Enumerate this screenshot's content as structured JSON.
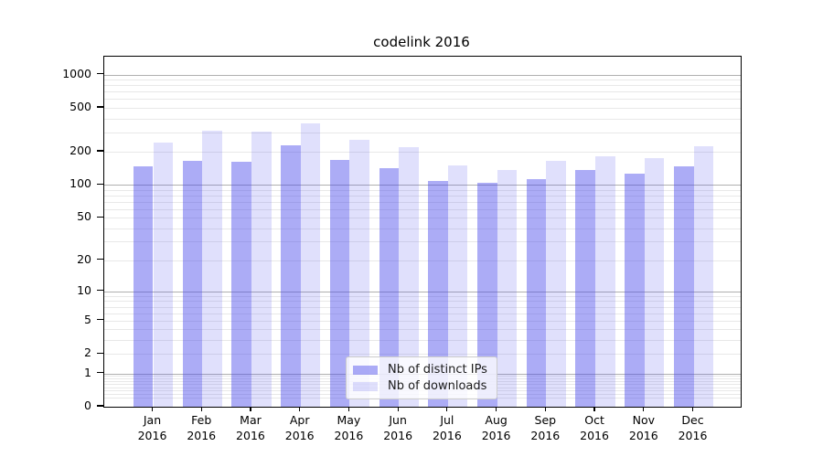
{
  "chart_data": {
    "type": "bar",
    "title": "codelink 2016",
    "x_axis": {
      "months": [
        "Jan",
        "Feb",
        "Mar",
        "Apr",
        "May",
        "Jun",
        "Jul",
        "Aug",
        "Sep",
        "Oct",
        "Nov",
        "Dec"
      ],
      "year": "2016"
    },
    "series": [
      {
        "name": "Nb of distinct IPs",
        "color": "rgba(70,70,235,0.45)",
        "values": [
          148,
          165,
          163,
          227,
          167,
          142,
          109,
          104,
          113,
          137,
          127,
          147
        ]
      },
      {
        "name": "Nb of downloads",
        "color": "rgba(70,70,235,0.17)",
        "values": [
          242,
          310,
          306,
          363,
          256,
          221,
          150,
          137,
          166,
          183,
          174,
          223
        ]
      }
    ],
    "y_axis": {
      "scale": "log1p",
      "min": 0,
      "max": 1450,
      "tick_values": [
        0,
        1,
        2,
        5,
        10,
        20,
        50,
        100,
        200,
        500,
        1000
      ],
      "major_gridlines": [
        1,
        10,
        100,
        1000
      ],
      "minor_gridlines": [
        0.2,
        0.3,
        0.4,
        0.5,
        0.6,
        0.7,
        0.8,
        0.9,
        2,
        3,
        4,
        5,
        6,
        7,
        8,
        9,
        20,
        30,
        40,
        50,
        60,
        70,
        80,
        90,
        200,
        300,
        400,
        500,
        600,
        700,
        800,
        900
      ]
    },
    "legend": {
      "position": "lower-center"
    },
    "grid": {
      "major_color": "#b0b0b0",
      "minor_color": "#e8e8e8"
    },
    "frame_color": "#000000"
  }
}
